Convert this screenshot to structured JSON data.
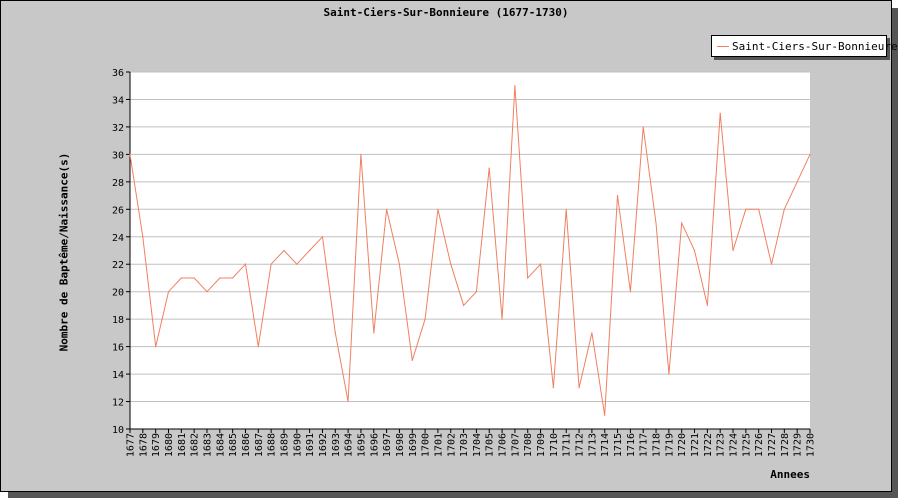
{
  "chart_data": {
    "type": "line",
    "title": "Saint-Ciers-Sur-Bonnieure (1677-1730)",
    "xlabel": "Annees",
    "ylabel": "Nombre de Baptême/Naissance(s)",
    "ylim": [
      10,
      36
    ],
    "yticks": [
      10,
      12,
      14,
      16,
      18,
      20,
      22,
      24,
      26,
      28,
      30,
      32,
      34,
      36
    ],
    "grid": true,
    "legend": "top-right",
    "x": [
      "1677",
      "1678",
      "1679",
      "1680",
      "1681",
      "1682",
      "1683",
      "1684",
      "1685",
      "1686",
      "1687",
      "1688",
      "1689",
      "1690",
      "1691",
      "1692",
      "1693",
      "1694",
      "1695",
      "1696",
      "1697",
      "1698",
      "1699",
      "1700",
      "1701",
      "1702",
      "1703",
      "1704",
      "1705",
      "1706",
      "1707",
      "1708",
      "1709",
      "1710",
      "1711",
      "1712",
      "1713",
      "1714",
      "1715",
      "1716",
      "1717",
      "1718",
      "1719",
      "1720",
      "1721",
      "1722",
      "1723",
      "1724",
      "1725",
      "1726",
      "1727",
      "1728",
      "1729",
      "1730"
    ],
    "series": [
      {
        "name": "Saint-Ciers-Sur-Bonnieure",
        "color": "#f08060",
        "values": [
          30,
          24,
          16,
          20,
          21,
          21,
          20,
          21,
          21,
          22,
          16,
          22,
          23,
          22,
          23,
          24,
          17,
          12,
          30,
          17,
          26,
          22,
          15,
          18,
          26,
          22,
          19,
          20,
          29,
          18,
          35,
          21,
          22,
          13,
          26,
          13,
          17,
          11,
          27,
          20,
          32,
          25,
          14,
          25,
          23,
          19,
          33,
          23,
          26,
          26,
          22,
          26,
          28,
          30
        ]
      }
    ]
  }
}
